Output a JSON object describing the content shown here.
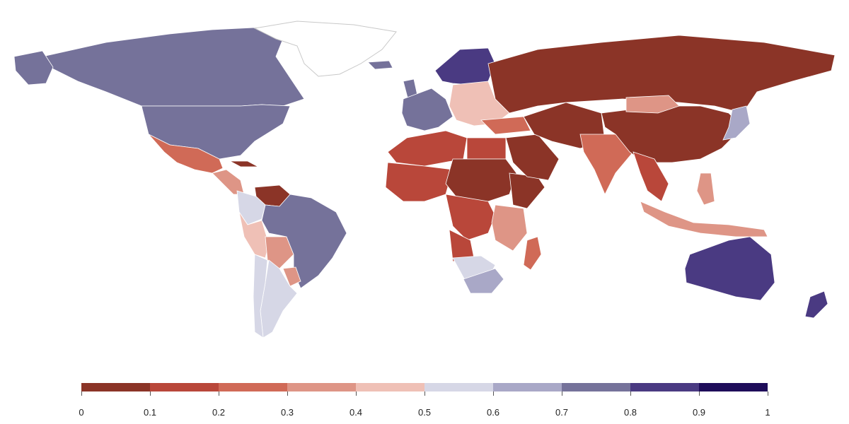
{
  "map": {
    "type": "choropleth",
    "scale_min": 0,
    "scale_max": 1,
    "border_color": "#ffffff",
    "regions": [
      {
        "name": "Canada",
        "value": 0.75
      },
      {
        "name": "Greenland",
        "value": null
      },
      {
        "name": "Alaska",
        "value": 0.75
      },
      {
        "name": "United States",
        "value": 0.75
      },
      {
        "name": "Mexico",
        "value": 0.25
      },
      {
        "name": "Central America",
        "value": 0.3
      },
      {
        "name": "Cuba",
        "value": 0.05
      },
      {
        "name": "Venezuela",
        "value": 0.05
      },
      {
        "name": "Colombia",
        "value": 0.55
      },
      {
        "name": "Peru",
        "value": 0.45
      },
      {
        "name": "Bolivia",
        "value": 0.35
      },
      {
        "name": "Brazil",
        "value": 0.75
      },
      {
        "name": "Paraguay",
        "value": 0.35
      },
      {
        "name": "Argentina",
        "value": 0.55
      },
      {
        "name": "Chile",
        "value": 0.55
      },
      {
        "name": "Iceland",
        "value": 0.75
      },
      {
        "name": "United Kingdom",
        "value": 0.75
      },
      {
        "name": "Western Europe",
        "value": 0.75
      },
      {
        "name": "Scandinavia",
        "value": 0.85
      },
      {
        "name": "Eastern Europe",
        "value": 0.45
      },
      {
        "name": "Russia",
        "value": 0.05
      },
      {
        "name": "Turkey",
        "value": 0.25
      },
      {
        "name": "North Africa",
        "value": 0.15
      },
      {
        "name": "Egypt",
        "value": 0.15
      },
      {
        "name": "West Africa",
        "value": 0.15
      },
      {
        "name": "Sudan & Chad",
        "value": 0.05
      },
      {
        "name": "Horn of Africa",
        "value": 0.05
      },
      {
        "name": "Central Africa",
        "value": 0.15
      },
      {
        "name": "East Africa",
        "value": 0.3
      },
      {
        "name": "Angola",
        "value": 0.15
      },
      {
        "name": "Namibia & Botswana",
        "value": 0.55
      },
      {
        "name": "South Africa",
        "value": 0.65
      },
      {
        "name": "Madagascar",
        "value": 0.2
      },
      {
        "name": "Arabian Peninsula",
        "value": 0.05
      },
      {
        "name": "Iran & Central Asia",
        "value": 0.05
      },
      {
        "name": "India",
        "value": 0.25
      },
      {
        "name": "China",
        "value": 0.05
      },
      {
        "name": "Mongolia",
        "value": 0.35
      },
      {
        "name": "Southeast Asia",
        "value": 0.15
      },
      {
        "name": "Japan",
        "value": 0.65
      },
      {
        "name": "Indonesia",
        "value": 0.3
      },
      {
        "name": "Philippines",
        "value": 0.3
      },
      {
        "name": "Australia",
        "value": 0.85
      },
      {
        "name": "New Zealand",
        "value": 0.85
      }
    ]
  },
  "legend": {
    "colors": [
      "#8b3427",
      "#b9473a",
      "#d06a57",
      "#de9586",
      "#efc0b6",
      "#d6d7e6",
      "#a9a8c7",
      "#75729a",
      "#4a3a82",
      "#1f0d5a"
    ],
    "tick_labels": [
      "0",
      "0.1",
      "0.2",
      "0.3",
      "0.4",
      "0.5",
      "0.6",
      "0.7",
      "0.8",
      "0.9",
      "1"
    ]
  }
}
